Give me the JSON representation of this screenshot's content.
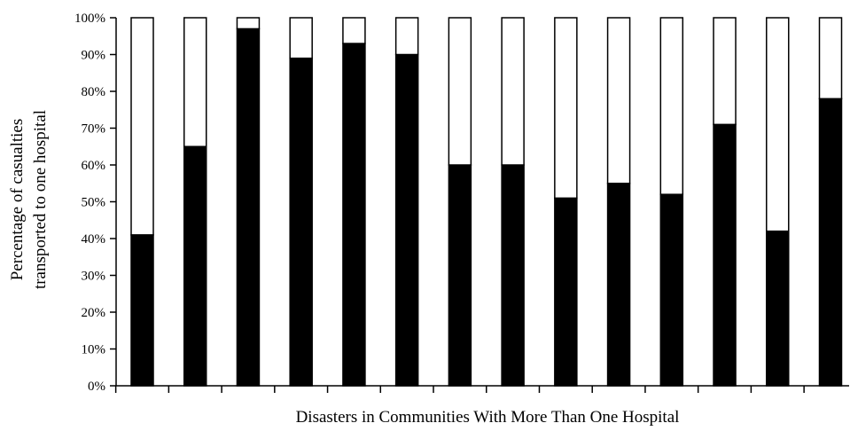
{
  "chart_data": {
    "type": "bar",
    "stacked": true,
    "title": "",
    "xlabel": "Disasters in Communities With More Than One Hospital",
    "ylabel_lines": [
      "Percentage of casualties",
      "transported to one hospital"
    ],
    "ylim": [
      0,
      100
    ],
    "yticks": [
      "0%",
      "10%",
      "20%",
      "30%",
      "40%",
      "50%",
      "60%",
      "70%",
      "80%",
      "90%",
      "100%"
    ],
    "grid": false,
    "legend": "none",
    "categories": [
      "",
      "",
      "",
      "",
      "",
      "",
      "",
      "",
      "",
      "",
      "",
      "",
      "",
      ""
    ],
    "series": [
      {
        "values": [
          41,
          65,
          97,
          89,
          93,
          90,
          60,
          60,
          51,
          55,
          52,
          71,
          42,
          78
        ],
        "color": "#000000"
      },
      {
        "values": [
          59,
          35,
          3,
          11,
          7,
          10,
          40,
          40,
          49,
          45,
          48,
          29,
          58,
          22
        ],
        "color": "#ffffff"
      }
    ]
  }
}
